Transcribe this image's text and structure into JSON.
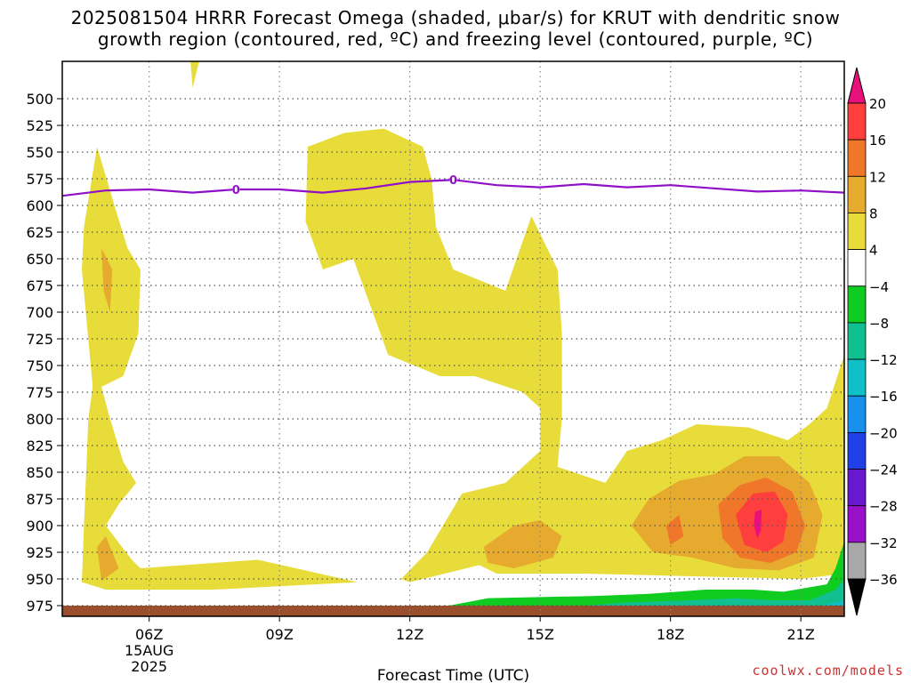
{
  "title_line1": "2025081504 HRRR Forecast Omega (shaded, μbar/s) for KRUT with dendritic snow",
  "title_line2": "growth region (contoured, red, ºC) and freezing level (contoured, purple, ºC)",
  "credit": "coolwx.com/models",
  "chart_data": {
    "type": "heatmap",
    "title": "2025081504 HRRR Forecast Omega (shaded, μbar/s) for KRUT with dendritic snow growth region (contoured, red, ºC) and freezing level (contoured, purple, ºC)",
    "xlabel": "Forecast Time (UTC)",
    "ylabel": "",
    "x_ticks": [
      "06Z",
      "09Z",
      "12Z",
      "15Z",
      "18Z",
      "21Z"
    ],
    "x_tick_hours": [
      6,
      9,
      12,
      15,
      18,
      21
    ],
    "x_date_label": [
      "15AUG",
      "2025"
    ],
    "xlim_hours": [
      4,
      22
    ],
    "y_ticks": [
      500,
      525,
      550,
      575,
      600,
      625,
      650,
      675,
      700,
      725,
      750,
      775,
      800,
      825,
      850,
      875,
      900,
      925,
      950,
      975
    ],
    "ylim_hpa": [
      465,
      985
    ],
    "grid": true,
    "colorbar": {
      "labels": [
        "20",
        "16",
        "12",
        "8",
        "4",
        "−4",
        "−8",
        "−12",
        "−16",
        "−20",
        "−24",
        "−28",
        "−32",
        "−36"
      ],
      "colors": [
        "#ff3e3e",
        "#f0762a",
        "#e6aa2e",
        "#e8dc3a",
        "#ffffff",
        "#10cc20",
        "#10c090",
        "#10c0c8",
        "#1890ee",
        "#2040e8",
        "#6a18d0",
        "#9a10c8",
        "#a8a8a8"
      ],
      "top_color": "#e8107a",
      "bottom_color": "#000000"
    },
    "freezing_level": {
      "label": "0",
      "color": "#9010c8",
      "x_hours": [
        4,
        5,
        6,
        7,
        8,
        9,
        10,
        11,
        12,
        13,
        14,
        15,
        16,
        17,
        18,
        19,
        20,
        21,
        22
      ],
      "y_hpa": [
        591,
        586,
        585,
        588,
        585,
        585,
        588,
        584,
        578,
        576,
        581,
        583,
        580,
        583,
        581,
        584,
        587,
        586,
        588
      ],
      "label_positions_hours": [
        8,
        13
      ]
    },
    "omega_regions": [
      {
        "level": "4 to 8 μbar/s",
        "color": "#e8dc3a",
        "polygon": [
          [
            4.45,
            953
          ],
          [
            4.5,
            900
          ],
          [
            4.6,
            800
          ],
          [
            4.7,
            770
          ],
          [
            4.45,
            660
          ],
          [
            4.5,
            620
          ],
          [
            4.8,
            545
          ],
          [
            5.2,
            600
          ],
          [
            5.5,
            640
          ],
          [
            5.8,
            660
          ],
          [
            5.75,
            720
          ],
          [
            5.4,
            760
          ],
          [
            4.9,
            770
          ],
          [
            5.1,
            800
          ],
          [
            5.4,
            840
          ],
          [
            5.7,
            860
          ],
          [
            5.3,
            880
          ],
          [
            5.0,
            900
          ],
          [
            5.6,
            932
          ],
          [
            5.8,
            940
          ],
          [
            8.5,
            932
          ],
          [
            10.8,
            953
          ],
          [
            7.5,
            960
          ],
          [
            5.0,
            960
          ]
        ]
      },
      {
        "level": "4 to 8 μbar/s",
        "color": "#e8dc3a",
        "polygon": [
          [
            9.65,
            545
          ],
          [
            10.5,
            532
          ],
          [
            11.4,
            528
          ],
          [
            12.3,
            545
          ],
          [
            12.5,
            575
          ],
          [
            12.6,
            620
          ],
          [
            13.0,
            660
          ],
          [
            13.6,
            670
          ],
          [
            14.2,
            680
          ],
          [
            14.8,
            610
          ],
          [
            15.4,
            660
          ],
          [
            15.5,
            720
          ],
          [
            15.5,
            800
          ],
          [
            15.4,
            845
          ],
          [
            16.5,
            860
          ],
          [
            17.0,
            830
          ],
          [
            17.8,
            820
          ],
          [
            18.6,
            805
          ],
          [
            19.8,
            808
          ],
          [
            20.7,
            820
          ],
          [
            21.2,
            805
          ],
          [
            21.6,
            790
          ],
          [
            22.0,
            740
          ],
          [
            22.0,
            945
          ],
          [
            21.0,
            950
          ],
          [
            18.0,
            947
          ],
          [
            16.0,
            945
          ],
          [
            14.0,
            945
          ],
          [
            13.6,
            937
          ],
          [
            12.0,
            953
          ],
          [
            11.8,
            950
          ],
          [
            12.4,
            925
          ],
          [
            13.2,
            870
          ],
          [
            14.2,
            860
          ],
          [
            15.0,
            830
          ],
          [
            15.0,
            790
          ],
          [
            14.6,
            775
          ],
          [
            13.5,
            760
          ],
          [
            12.7,
            760
          ],
          [
            11.5,
            740
          ],
          [
            10.7,
            650
          ],
          [
            10.0,
            660
          ],
          [
            9.6,
            615
          ]
        ]
      },
      {
        "level": "8 to 12 μbar/s",
        "color": "#e6aa2e",
        "polygon": [
          [
            4.8,
            920
          ],
          [
            5.0,
            910
          ],
          [
            5.3,
            940
          ],
          [
            4.9,
            952
          ]
        ]
      },
      {
        "level": "8 to 12 μbar/s",
        "color": "#e6aa2e",
        "polygon": [
          [
            4.9,
            640
          ],
          [
            5.15,
            660
          ],
          [
            5.1,
            700
          ],
          [
            4.95,
            680
          ]
        ]
      },
      {
        "level": "8 to 12 μbar/s",
        "color": "#e6aa2e",
        "polygon": [
          [
            13.7,
            920
          ],
          [
            14.4,
            900
          ],
          [
            15.0,
            895
          ],
          [
            15.5,
            910
          ],
          [
            15.3,
            930
          ],
          [
            14.4,
            940
          ],
          [
            13.8,
            935
          ]
        ]
      },
      {
        "level": "8 to 12 μbar/s",
        "color": "#e6aa2e",
        "polygon": [
          [
            17.1,
            900
          ],
          [
            17.5,
            875
          ],
          [
            18.2,
            858
          ],
          [
            19.0,
            852
          ],
          [
            19.7,
            835
          ],
          [
            20.5,
            835
          ],
          [
            21.2,
            860
          ],
          [
            21.5,
            890
          ],
          [
            21.3,
            930
          ],
          [
            20.5,
            942
          ],
          [
            19.5,
            940
          ],
          [
            18.5,
            930
          ],
          [
            17.6,
            925
          ]
        ]
      },
      {
        "level": "12 to 16 μbar/s",
        "color": "#f0762a",
        "polygon": [
          [
            19.1,
            880
          ],
          [
            19.6,
            862
          ],
          [
            20.2,
            855
          ],
          [
            20.8,
            868
          ],
          [
            21.1,
            900
          ],
          [
            20.9,
            925
          ],
          [
            20.3,
            935
          ],
          [
            19.6,
            930
          ],
          [
            19.2,
            912
          ]
        ]
      },
      {
        "level": "12 to 16 μbar/s",
        "color": "#f0762a",
        "polygon": [
          [
            17.9,
            900
          ],
          [
            18.2,
            890
          ],
          [
            18.3,
            910
          ],
          [
            18.0,
            918
          ]
        ]
      },
      {
        "level": "16 to 20 μbar/s",
        "color": "#ff3e3e",
        "polygon": [
          [
            19.5,
            890
          ],
          [
            19.9,
            870
          ],
          [
            20.4,
            868
          ],
          [
            20.7,
            890
          ],
          [
            20.6,
            915
          ],
          [
            20.2,
            925
          ],
          [
            19.7,
            918
          ]
        ]
      },
      {
        "level": "above 20 μbar/s",
        "color": "#e8107a",
        "polygon": [
          [
            19.95,
            887
          ],
          [
            20.1,
            885
          ],
          [
            20.08,
            905
          ],
          [
            20.0,
            912
          ],
          [
            19.92,
            900
          ]
        ]
      },
      {
        "level": "4 to 8 μbar/s",
        "color": "#e8dc3a",
        "polygon": [
          [
            6.95,
            465
          ],
          [
            7.15,
            465
          ],
          [
            7.0,
            490
          ]
        ]
      },
      {
        "level": "-4 to -8 μbar/s",
        "color": "#10cc20",
        "polygon": [
          [
            12.9,
            975
          ],
          [
            13.8,
            968
          ],
          [
            15.0,
            967
          ],
          [
            16.2,
            966
          ],
          [
            17.5,
            964
          ],
          [
            18.8,
            960
          ],
          [
            19.9,
            960
          ],
          [
            20.6,
            962
          ],
          [
            21.6,
            955
          ],
          [
            21.8,
            940
          ],
          [
            22.0,
            915
          ],
          [
            22.0,
            985
          ],
          [
            12.9,
            985
          ]
        ]
      },
      {
        "level": "-8 to -12 μbar/s",
        "color": "#10c090",
        "polygon": [
          [
            16.0,
            975
          ],
          [
            17.0,
            972
          ],
          [
            18.5,
            970
          ],
          [
            19.5,
            968
          ],
          [
            20.3,
            970
          ],
          [
            21.2,
            970
          ],
          [
            21.8,
            960
          ],
          [
            22.0,
            950
          ],
          [
            22.0,
            985
          ],
          [
            16.0,
            985
          ]
        ]
      },
      {
        "level": "-12 to -16 μbar/s",
        "color": "#10c0c8",
        "polygon": [
          [
            19.7,
            978
          ],
          [
            20.3,
            975
          ],
          [
            21.5,
            975
          ],
          [
            22.0,
            970
          ],
          [
            22.0,
            985
          ],
          [
            19.7,
            985
          ]
        ]
      }
    ],
    "ground": {
      "color": "#9a4e2c",
      "top_hpa": 975
    }
  }
}
